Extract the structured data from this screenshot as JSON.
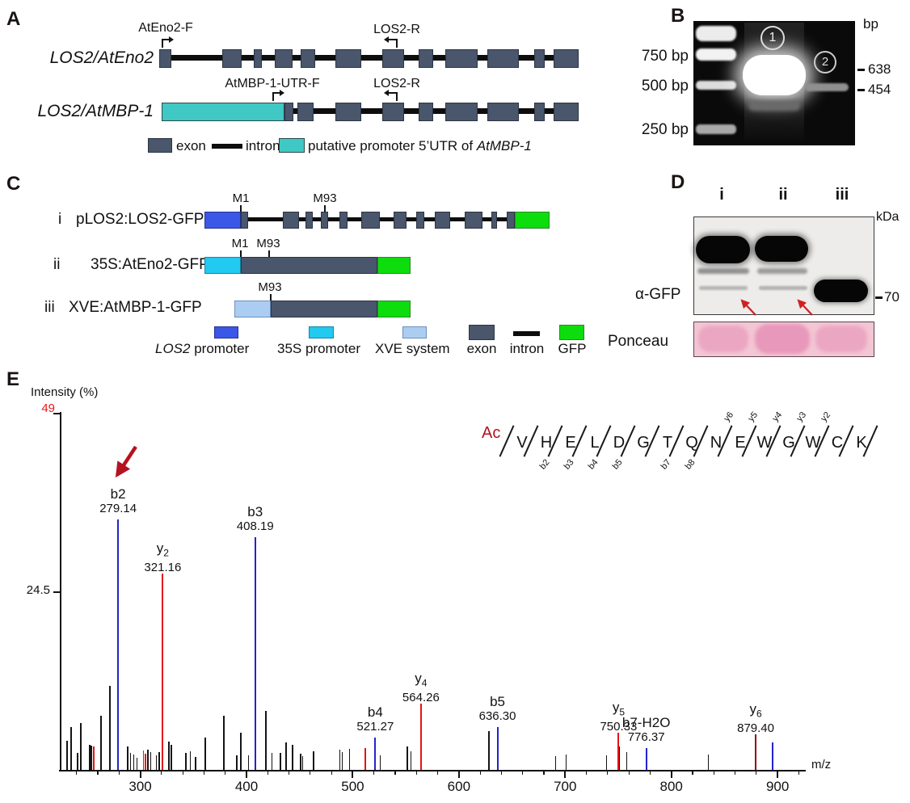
{
  "panels": {
    "A": {
      "tag": "A",
      "rows": [
        {
          "gene": "LOS2/AtEno2",
          "fwd_primer": "AtEno2-F",
          "rev_primer": "LOS2-R"
        },
        {
          "gene": "LOS2/AtMBP-1",
          "fwd_primer": "AtMBP-1-UTR-F",
          "rev_primer": "LOS2-R"
        }
      ],
      "legend": {
        "exon": "exon",
        "intron": "intron",
        "promoter_prefix": "putative promoter 5’UTR of ",
        "promoter_gene": "AtMBP-1"
      }
    },
    "B": {
      "tag": "B",
      "unit": "bp",
      "ladder_labels": [
        "750 bp",
        "500 bp",
        "250 bp"
      ],
      "lane_numbers": [
        "1",
        "2"
      ],
      "band_markers": [
        "638",
        "454"
      ]
    },
    "C": {
      "tag": "C",
      "constructs": [
        {
          "index": "i",
          "name": "pLOS2:LOS2-GFP",
          "marks": [
            "M1",
            "M93"
          ]
        },
        {
          "index": "ii",
          "name": "35S:AtEno2-GFP",
          "marks": [
            "M1",
            "M93"
          ]
        },
        {
          "index": "iii",
          "name": "XVE:AtMBP-1-GFP",
          "marks": [
            "M93"
          ]
        }
      ],
      "legend": [
        {
          "gene": "LOS2",
          "rest": " promoter",
          "color": "#3a57e8"
        },
        {
          "label": "35S promoter",
          "color": "#22c9f0"
        },
        {
          "label": "XVE system",
          "color": "#abcdf2"
        },
        {
          "label": "exon",
          "color": "#49566c"
        },
        {
          "label": "intron",
          "color": "#0d0d0d"
        },
        {
          "label": "GFP",
          "color": "#0ddd0d"
        }
      ]
    },
    "D": {
      "tag": "D",
      "lanes": [
        "i",
        "ii",
        "iii"
      ],
      "unit": "kDa",
      "marker": "70",
      "antibody": "α-GFP",
      "stain": "Ponceau"
    },
    "E": {
      "tag": "E"
    }
  },
  "chart_data": {
    "type": "bar",
    "subtype": "ms2-fragmentation-stick-spectrum",
    "title": "",
    "xlabel": "m/z",
    "ylabel": "Intensity (%)",
    "xlim": [
      225,
      925
    ],
    "ylim": [
      0,
      49
    ],
    "xticks": [
      300,
      400,
      500,
      600,
      700,
      800,
      900
    ],
    "yticks": [
      24.5,
      49
    ],
    "ymax_label": "49",
    "ymid_label": "24.5",
    "colors": {
      "b_ion": "#2323cf",
      "y_ion": "#e51414",
      "y_ion_dark": "#8f0d12",
      "noise": "#141414",
      "accent_red": "#b5121f"
    },
    "labeled_peaks": [
      {
        "mz": 279.14,
        "intensity": 34.5,
        "ion": "b",
        "num": "2",
        "series": "b",
        "value": "279.14"
      },
      {
        "mz": 321.16,
        "intensity": 27.0,
        "ion": "y",
        "num": "2",
        "series": "y",
        "value": "321.16"
      },
      {
        "mz": 408.19,
        "intensity": 32.0,
        "ion": "b",
        "num": "3",
        "series": "b",
        "value": "408.19"
      },
      {
        "mz": 521.27,
        "intensity": 4.5,
        "ion": "b",
        "num": "4",
        "series": "b",
        "value": "521.27"
      },
      {
        "mz": 564.26,
        "intensity": 9.1,
        "ion": "y",
        "num": "4",
        "series": "y",
        "value": "564.26"
      },
      {
        "mz": 636.3,
        "intensity": 5.9,
        "ion": "b",
        "num": "5",
        "series": "b",
        "value": "636.30"
      },
      {
        "mz": 750.33,
        "intensity": 5.1,
        "ion": "y",
        "num": "5",
        "series": "y",
        "value": "750.33"
      },
      {
        "mz": 776.37,
        "intensity": 3.0,
        "ion": "b7-H2O",
        "num": "",
        "series": "b",
        "value": "776.37"
      },
      {
        "mz": 879.4,
        "intensity": 4.9,
        "ion": "y",
        "num": "6",
        "series": "y-dark",
        "value": "879.40"
      },
      {
        "mz": 895.0,
        "intensity": 3.8,
        "ion": "",
        "num": "",
        "series": "b",
        "value": ""
      }
    ],
    "noise_peaks": [
      [
        231,
        4.0
      ],
      [
        235,
        5.9
      ],
      [
        241,
        2.3
      ],
      [
        244,
        6.4
      ],
      [
        252,
        3.4
      ],
      [
        254,
        3.3
      ],
      [
        263,
        7.5
      ],
      [
        271,
        11.6
      ],
      [
        288,
        3.2
      ],
      [
        291,
        2.3
      ],
      [
        294,
        2.1
      ],
      [
        297,
        1.7
      ],
      [
        307,
        2.8
      ],
      [
        310,
        2.4
      ],
      [
        315,
        2.0
      ],
      [
        318,
        2.4
      ],
      [
        327,
        3.9
      ],
      [
        329,
        3.4
      ],
      [
        343,
        2.3
      ],
      [
        347,
        2.6
      ],
      [
        352,
        1.8
      ],
      [
        361,
        4.4
      ],
      [
        379,
        7.4
      ],
      [
        391,
        2.0
      ],
      [
        395,
        5.1
      ],
      [
        402,
        2.0
      ],
      [
        418,
        8.1
      ],
      [
        424,
        2.3
      ],
      [
        432,
        2.3
      ],
      [
        437,
        3.8
      ],
      [
        443,
        3.4
      ],
      [
        451,
        2.2
      ],
      [
        453,
        1.9
      ],
      [
        463,
        2.6
      ],
      [
        488,
        2.8
      ],
      [
        490,
        2.4
      ],
      [
        497,
        2.9
      ],
      [
        526,
        2.0
      ],
      [
        551,
        3.2
      ],
      [
        555,
        2.6
      ],
      [
        628,
        5.3
      ],
      [
        691,
        1.9
      ],
      [
        701,
        2.1
      ],
      [
        739,
        2.0
      ],
      [
        751,
        3.2
      ],
      [
        758,
        2.5
      ],
      [
        835,
        2.1
      ]
    ],
    "red_noise_peaks": [
      [
        256,
        3.2
      ],
      [
        303,
        2.7
      ],
      [
        305,
        2.2
      ],
      [
        512,
        3.0
      ]
    ],
    "peptide": {
      "nterm": "Ac",
      "residues": [
        "V",
        "H",
        "E",
        "L",
        "D",
        "G",
        "T",
        "Q",
        "N",
        "E",
        "W",
        "G",
        "W",
        "C",
        "K"
      ],
      "b_ions": [
        {
          "gap": 2,
          "label": "b2"
        },
        {
          "gap": 3,
          "label": "b3"
        },
        {
          "gap": 4,
          "label": "b4"
        },
        {
          "gap": 5,
          "label": "b5"
        },
        {
          "gap": 7,
          "label": "b7"
        },
        {
          "gap": 8,
          "label": "b8"
        }
      ],
      "y_ions": [
        {
          "gap": 9,
          "label": "y6"
        },
        {
          "gap": 10,
          "label": "y5"
        },
        {
          "gap": 11,
          "label": "y4"
        },
        {
          "gap": 12,
          "label": "y3"
        },
        {
          "gap": 13,
          "label": "y2"
        }
      ]
    }
  }
}
